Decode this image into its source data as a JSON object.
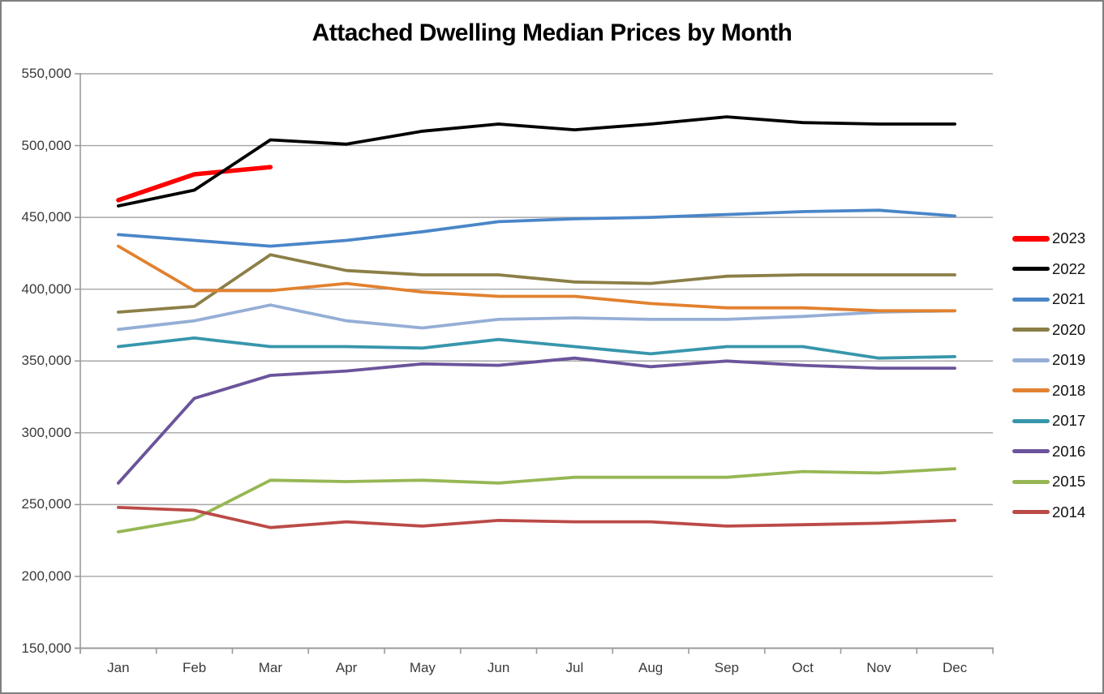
{
  "chart_data": {
    "type": "line",
    "title": "Attached Dwelling Median Prices by Month",
    "legend_position": "right",
    "grid": true,
    "x_axis": {
      "categories": [
        "Jan",
        "Feb",
        "Mar",
        "Apr",
        "May",
        "Jun",
        "Jul",
        "Aug",
        "Sep",
        "Oct",
        "Nov",
        "Dec"
      ]
    },
    "y_axis": {
      "min": 150000,
      "max": 550000,
      "step": 50000,
      "tick_format": "thousands-comma"
    },
    "series": [
      {
        "name": "2023",
        "color": "#FF0000",
        "stroke_width": 5.5,
        "values": [
          462000,
          480000,
          485000
        ]
      },
      {
        "name": "2022",
        "color": "#000000",
        "stroke_width": 3.8,
        "values": [
          458000,
          469000,
          504000,
          501000,
          510000,
          515000,
          511000,
          515000,
          520000,
          516000,
          515000,
          515000
        ]
      },
      {
        "name": "2021",
        "color": "#4A86C8",
        "stroke_width": 3.8,
        "values": [
          438000,
          434000,
          430000,
          434000,
          440000,
          447000,
          449000,
          450000,
          452000,
          454000,
          455000,
          451000
        ]
      },
      {
        "name": "2020",
        "color": "#8B7F47",
        "stroke_width": 3.8,
        "values": [
          384000,
          388000,
          424000,
          413000,
          410000,
          410000,
          405000,
          404000,
          409000,
          410000,
          410000,
          410000
        ]
      },
      {
        "name": "2019",
        "color": "#95AED6",
        "stroke_width": 3.8,
        "values": [
          372000,
          378000,
          389000,
          378000,
          373000,
          379000,
          380000,
          379000,
          379000,
          381000,
          384000,
          385000
        ]
      },
      {
        "name": "2018",
        "color": "#E2812F",
        "stroke_width": 3.8,
        "values": [
          430000,
          399000,
          399000,
          404000,
          398000,
          395000,
          395000,
          390000,
          387000,
          387000,
          385000,
          385000
        ]
      },
      {
        "name": "2017",
        "color": "#3796AC",
        "stroke_width": 3.8,
        "values": [
          360000,
          366000,
          360000,
          360000,
          359000,
          365000,
          360000,
          355000,
          360000,
          360000,
          352000,
          353000
        ]
      },
      {
        "name": "2016",
        "color": "#6B549B",
        "stroke_width": 3.8,
        "values": [
          265000,
          324000,
          340000,
          343000,
          348000,
          347000,
          352000,
          346000,
          350000,
          347000,
          345000,
          345000
        ]
      },
      {
        "name": "2015",
        "color": "#96B754",
        "stroke_width": 3.8,
        "values": [
          231000,
          240000,
          267000,
          266000,
          267000,
          265000,
          269000,
          269000,
          269000,
          273000,
          272000,
          275000
        ]
      },
      {
        "name": "2014",
        "color": "#BB4A47",
        "stroke_width": 3.8,
        "values": [
          248000,
          246000,
          234000,
          238000,
          235000,
          239000,
          238000,
          238000,
          235000,
          236000,
          237000,
          239000
        ]
      }
    ]
  }
}
